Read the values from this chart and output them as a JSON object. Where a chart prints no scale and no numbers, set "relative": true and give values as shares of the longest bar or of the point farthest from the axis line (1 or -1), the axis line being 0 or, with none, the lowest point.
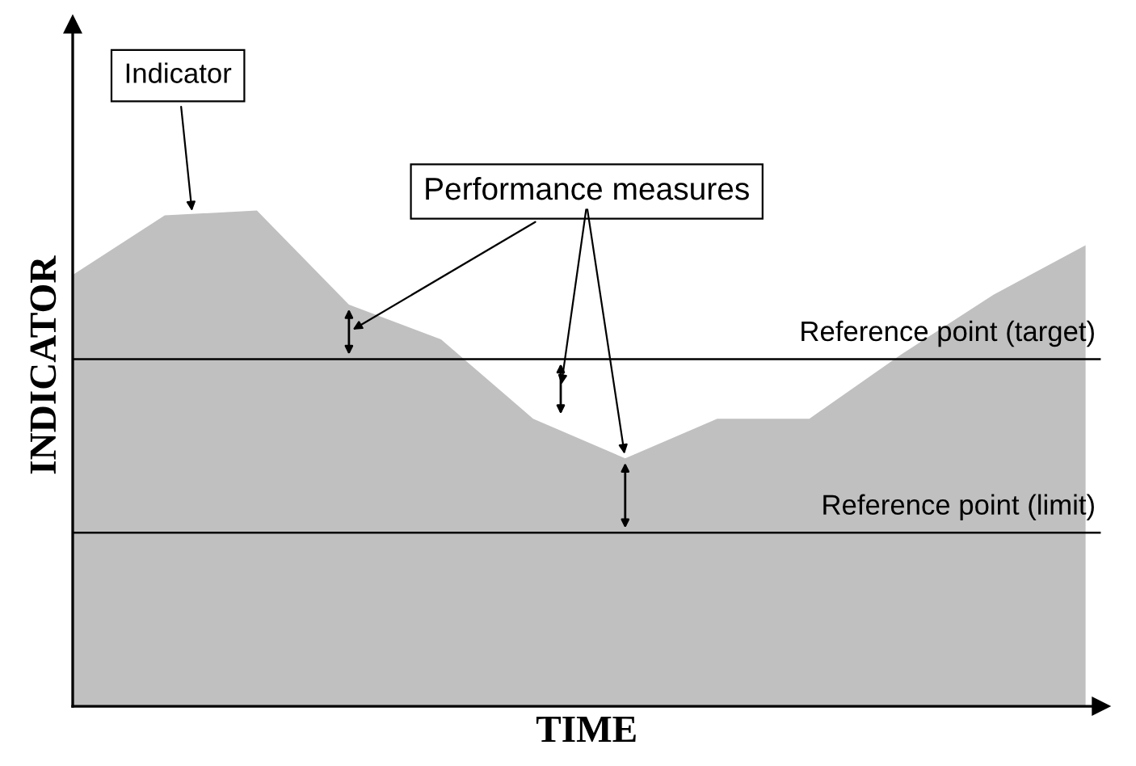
{
  "chart_data": {
    "type": "area",
    "relative": true,
    "xlabel": "TIME",
    "ylabel": "INDICATOR",
    "categories": [
      null,
      null,
      null,
      null,
      null,
      null,
      null,
      null,
      null,
      null,
      null,
      null
    ],
    "series": [
      {
        "color": "#c0c0c0",
        "values": [
          0.87,
          0.99,
          1.0,
          0.81,
          0.74,
          0.58,
          0.5,
          0.58,
          0.58,
          0.71,
          0.83,
          0.93
        ]
      }
    ],
    "ref_lines": [
      {
        "axis": "y",
        "value": 0.7,
        "label": "Reference point (target)",
        "color": "#000000"
      },
      {
        "axis": "y",
        "value": 0.35,
        "label": "Reference point (limit)",
        "color": "#000000"
      }
    ],
    "annotations": [
      "Indicator",
      "Performance measures"
    ],
    "legend": false,
    "tick_labels": false
  }
}
